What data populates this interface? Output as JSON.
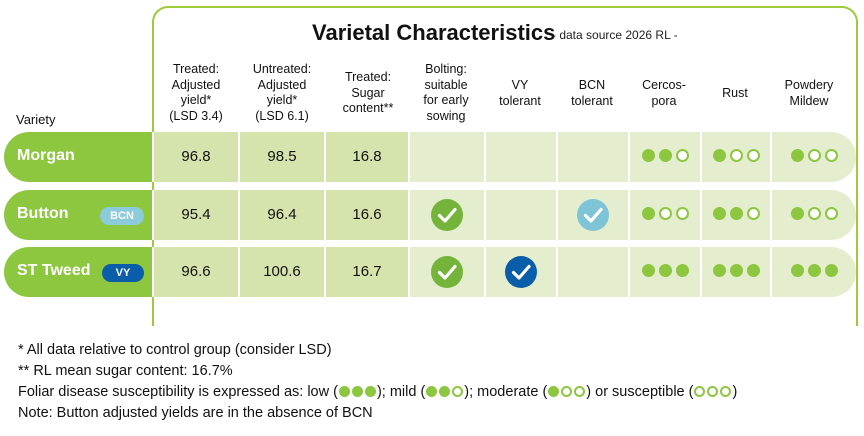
{
  "header": {
    "title": "Varietal Characteristics",
    "subtitle": "- data source 2026 RL -",
    "variety_label": "Variety",
    "columns": [
      "Treated:\nAdjusted\nyield*\n(LSD 3.4)",
      "Untreated:\nAdjusted\nyield*\n(LSD 6.1)",
      "Treated:\nSugar\ncontent**",
      "Bolting:\nsuitable\nfor early\nsowing",
      "VY\ntolerant",
      "BCN\ntolerant",
      "Cercos-\npora",
      "Rust",
      "Powdery\nMildew"
    ]
  },
  "rows": [
    {
      "name": "Morgan",
      "badge": "",
      "treated_yield": "96.8",
      "untreated_yield": "98.5",
      "sugar": "16.8",
      "bolting": false,
      "vy": false,
      "bcn": false,
      "cercospora": 2,
      "rust": 1,
      "powdery_mildew": 1
    },
    {
      "name": "Button",
      "badge": "BCN",
      "treated_yield": "95.4",
      "untreated_yield": "96.4",
      "sugar": "16.6",
      "bolting": true,
      "vy": false,
      "bcn": true,
      "cercospora": 1,
      "rust": 2,
      "powdery_mildew": 1
    },
    {
      "name": "ST Tweed",
      "badge": "VY",
      "treated_yield": "96.6",
      "untreated_yield": "100.6",
      "sugar": "16.7",
      "bolting": true,
      "vy": true,
      "bcn": false,
      "cercospora": 3,
      "rust": 3,
      "powdery_mildew": 3
    }
  ],
  "notes": {
    "line1": "* All data relative to control group (consider LSD)",
    "line2": "** RL mean sugar content: 16.7%",
    "line3_pre": "Foliar disease susceptibility is expressed as: low (",
    "line3_mid1": "); mild (",
    "line3_mid2": "); moderate (",
    "line3_mid3": ") or susceptible (",
    "line3_end": ")",
    "line4": "Note: Button adjusted yields are in the absence of BCN"
  },
  "colors": {
    "green": "#8dc63f",
    "frame_green": "#9ccb3b",
    "cell_light": "#e5edcf",
    "cell_dark": "#d5e4ad",
    "check_green": "#74b43a",
    "check_blue": "#7fc4d6",
    "check_navy": "#0a5da8"
  }
}
